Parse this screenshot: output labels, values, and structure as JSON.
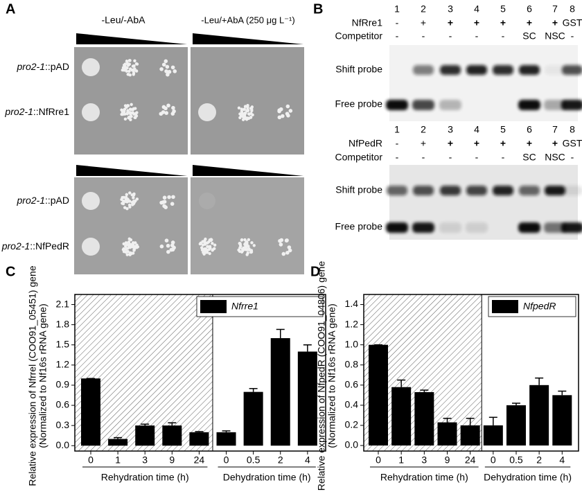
{
  "panel_a": {
    "label": "A",
    "conditions": [
      "-Leu/-AbA",
      "-Leu/+AbA (250 μg L⁻¹)"
    ],
    "plates": [
      {
        "rows": [
          {
            "strain": "pro2-1",
            "construct": "::pAD"
          },
          {
            "strain": "pro2-1",
            "construct": "::NfRre1"
          }
        ]
      },
      {
        "rows": [
          {
            "strain": "pro2-1",
            "construct": "::pAD"
          },
          {
            "strain": "pro2-1",
            "construct": "::NfPedR"
          }
        ]
      }
    ]
  },
  "panel_b": {
    "label": "B",
    "gels": [
      {
        "lanes": [
          "1",
          "2",
          "3",
          "4",
          "5",
          "6",
          "7",
          "8"
        ],
        "protein": "NfRre1",
        "protein_row": [
          "-",
          "+",
          "+",
          "+",
          "+",
          "+",
          "+",
          "GST"
        ],
        "competitor": "Competitor",
        "competitor_row": [
          "-",
          "-",
          "-",
          "-",
          "-",
          "SC",
          "NSC",
          "-"
        ],
        "bands": [
          "Shift probe",
          "Free probe"
        ]
      },
      {
        "lanes": [
          "1",
          "2",
          "3",
          "4",
          "5",
          "6",
          "7",
          "8"
        ],
        "protein": "NfPedR",
        "protein_row": [
          "-",
          "+",
          "+",
          "+",
          "+",
          "+",
          "+",
          "GST"
        ],
        "competitor": "Competitor",
        "competitor_row": [
          "-",
          "-",
          "-",
          "-",
          "-",
          "SC",
          "NSC",
          "-"
        ],
        "bands": [
          "Shift probe",
          "Free probe"
        ]
      }
    ]
  },
  "chart_data": [
    {
      "type": "bar",
      "panel_label": "C",
      "ylabel": [
        "Relative expression of Nfrrel (COO91_05451) gene",
        "(Normalized to Nf16s rRNA gene)"
      ],
      "categories": [
        "0",
        "1",
        "3",
        "9",
        "24",
        "0",
        "0.5",
        "2",
        "4"
      ],
      "groups": [
        "Rehydration time (h)",
        "Dehydration time (h)"
      ],
      "series": [
        {
          "name": "Nfrre1",
          "color": "#000000",
          "values": [
            1.0,
            0.1,
            0.3,
            0.3,
            0.2,
            0.2,
            0.8,
            1.6,
            1.4
          ],
          "errors": [
            0,
            0.02,
            0.02,
            0.04,
            0.01,
            0.02,
            0.05,
            0.13,
            0.1
          ]
        }
      ],
      "ylim": [
        -0.08,
        2.25
      ],
      "yticks": [
        {
          "value": 0,
          "label": "0.0"
        },
        0.3,
        0.6,
        0.9,
        1.2,
        1.5,
        1.8,
        2.1
      ]
    },
    {
      "type": "bar",
      "panel_label": "D",
      "ylabel": [
        "Relative expression of NfpedR (COO91_04806) gene",
        "(Normalized to Nf16s rRNA gene)"
      ],
      "categories": [
        "0",
        "1",
        "3",
        "9",
        "24",
        "0",
        "0.5",
        "2",
        "4"
      ],
      "groups": [
        "Rehydration time (h)",
        "Dehydration time (h)"
      ],
      "series": [
        {
          "name": "NfpedR",
          "color": "#000000",
          "values": [
            1.0,
            0.58,
            0.53,
            0.23,
            0.2,
            0.2,
            0.4,
            0.6,
            0.5
          ],
          "errors": [
            0,
            0.07,
            0.02,
            0.04,
            0.07,
            0.08,
            0.02,
            0.07,
            0.04
          ]
        }
      ],
      "ylim": [
        -0.055,
        1.5
      ],
      "yticks": [
        {
          "value": 0,
          "label": "0.0"
        },
        0.2,
        0.4,
        0.6,
        0.8,
        {
          "value": 1,
          "label": "1.0"
        },
        1.2,
        1.4
      ]
    }
  ]
}
